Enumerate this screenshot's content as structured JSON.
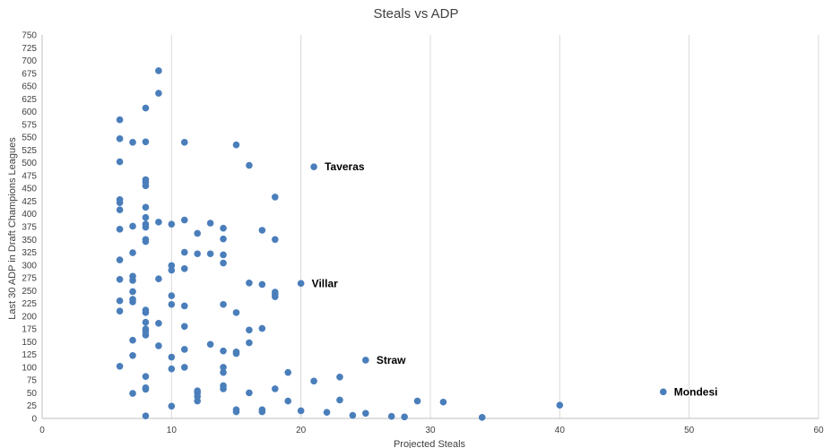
{
  "chart_data": {
    "type": "scatter",
    "title": "Steals vs ADP",
    "xlabel": "Projected Steals",
    "ylabel": "Last 30 ADP in Draft Champions Leagues",
    "xlim": [
      0,
      60
    ],
    "ylim": [
      0,
      750
    ],
    "x_ticks": [
      0,
      10,
      20,
      30,
      40,
      50,
      60
    ],
    "y_ticks": [
      0,
      25,
      50,
      75,
      100,
      125,
      150,
      175,
      200,
      225,
      250,
      275,
      300,
      325,
      350,
      375,
      400,
      425,
      450,
      475,
      500,
      525,
      550,
      575,
      600,
      625,
      650,
      675,
      700,
      725,
      750
    ],
    "grid": "vertical",
    "marker_color": "#4a7ebb",
    "points": [
      [
        9,
        680
      ],
      [
        9,
        636
      ],
      [
        8,
        607
      ],
      [
        6,
        584
      ],
      [
        6,
        547
      ],
      [
        7,
        540
      ],
      [
        8,
        541
      ],
      [
        11,
        540
      ],
      [
        15,
        535
      ],
      [
        6,
        502
      ],
      [
        16,
        495
      ],
      [
        21,
        492
      ],
      [
        8,
        467
      ],
      [
        8,
        462
      ],
      [
        8,
        455
      ],
      [
        18,
        433
      ],
      [
        6,
        428
      ],
      [
        6,
        422
      ],
      [
        8,
        413
      ],
      [
        6,
        408
      ],
      [
        8,
        393
      ],
      [
        8,
        380
      ],
      [
        8,
        374
      ],
      [
        9,
        384
      ],
      [
        10,
        380
      ],
      [
        11,
        388
      ],
      [
        13,
        382
      ],
      [
        14,
        372
      ],
      [
        7,
        376
      ],
      [
        6,
        370
      ],
      [
        12,
        362
      ],
      [
        17,
        368
      ],
      [
        8,
        350
      ],
      [
        8,
        346
      ],
      [
        14,
        351
      ],
      [
        18,
        350
      ],
      [
        7,
        324
      ],
      [
        11,
        325
      ],
      [
        12,
        322
      ],
      [
        13,
        322
      ],
      [
        14,
        320
      ],
      [
        6,
        310
      ],
      [
        14,
        304
      ],
      [
        10,
        299
      ],
      [
        10,
        290
      ],
      [
        11,
        293
      ],
      [
        7,
        278
      ],
      [
        6,
        272
      ],
      [
        7,
        270
      ],
      [
        9,
        273
      ],
      [
        16,
        265
      ],
      [
        17,
        262
      ],
      [
        20,
        264
      ],
      [
        18,
        247
      ],
      [
        18,
        242
      ],
      [
        18,
        238
      ],
      [
        7,
        248
      ],
      [
        10,
        240
      ],
      [
        6,
        230
      ],
      [
        7,
        233
      ],
      [
        7,
        228
      ],
      [
        10,
        223
      ],
      [
        11,
        220
      ],
      [
        14,
        223
      ],
      [
        6,
        210
      ],
      [
        8,
        212
      ],
      [
        8,
        207
      ],
      [
        15,
        207
      ],
      [
        8,
        188
      ],
      [
        9,
        186
      ],
      [
        11,
        180
      ],
      [
        8,
        175
      ],
      [
        8,
        170
      ],
      [
        8,
        163
      ],
      [
        16,
        173
      ],
      [
        17,
        176
      ],
      [
        7,
        153
      ],
      [
        16,
        148
      ],
      [
        9,
        142
      ],
      [
        11,
        135
      ],
      [
        13,
        145
      ],
      [
        14,
        132
      ],
      [
        15,
        130
      ],
      [
        15,
        127
      ],
      [
        7,
        123
      ],
      [
        10,
        120
      ],
      [
        25,
        114
      ],
      [
        6,
        102
      ],
      [
        10,
        97
      ],
      [
        11,
        100
      ],
      [
        14,
        100
      ],
      [
        14,
        90
      ],
      [
        19,
        90
      ],
      [
        8,
        82
      ],
      [
        23,
        81
      ],
      [
        21,
        73
      ],
      [
        14,
        64
      ],
      [
        8,
        60
      ],
      [
        14,
        58
      ],
      [
        18,
        58
      ],
      [
        8,
        57
      ],
      [
        12,
        54
      ],
      [
        12,
        50
      ],
      [
        7,
        49
      ],
      [
        16,
        50
      ],
      [
        12,
        43
      ],
      [
        48,
        52
      ],
      [
        12,
        34
      ],
      [
        19,
        34
      ],
      [
        23,
        36
      ],
      [
        29,
        34
      ],
      [
        31,
        32
      ],
      [
        10,
        24
      ],
      [
        40,
        26
      ],
      [
        15,
        17
      ],
      [
        15,
        13
      ],
      [
        17,
        17
      ],
      [
        17,
        13
      ],
      [
        20,
        15
      ],
      [
        22,
        12
      ],
      [
        24,
        6
      ],
      [
        25,
        10
      ],
      [
        27,
        4
      ],
      [
        28,
        3
      ],
      [
        34,
        2
      ],
      [
        8,
        5
      ]
    ],
    "annotations": [
      {
        "text": "Taveras",
        "x": 21,
        "y": 492
      },
      {
        "text": "Villar",
        "x": 20,
        "y": 264
      },
      {
        "text": "Straw",
        "x": 25,
        "y": 114
      },
      {
        "text": "Mondesi",
        "x": 48,
        "y": 52
      }
    ]
  }
}
